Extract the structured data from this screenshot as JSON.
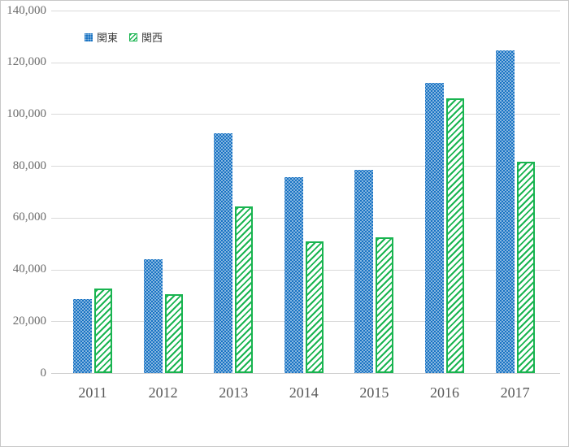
{
  "chart_data": {
    "type": "bar",
    "title": "",
    "categories": [
      "2011",
      "2012",
      "2013",
      "2014",
      "2015",
      "2016",
      "2017"
    ],
    "series": [
      {
        "key": "kanto",
        "name": "関東",
        "color": "#1973C3",
        "pattern": "dots",
        "values": [
          28500,
          44000,
          92500,
          75500,
          78500,
          112000,
          124500
        ]
      },
      {
        "key": "kansai",
        "name": "関西",
        "color": "#19B450",
        "pattern": "diagonal-hatch",
        "values": [
          32500,
          30500,
          64500,
          51000,
          52500,
          106000,
          81500
        ]
      }
    ],
    "xlabel": "",
    "ylabel": "",
    "ylim": [
      0,
      140000
    ],
    "ytick_step": 20000,
    "ytick_labels": [
      "0",
      "20,000",
      "40,000",
      "60,000",
      "80,000",
      "100,000",
      "120,000",
      "140,000"
    ],
    "grid": "horizontal",
    "legend_position": "top-left",
    "gridline_color": "#d9d9d9",
    "axis_label_color": "#595959"
  }
}
